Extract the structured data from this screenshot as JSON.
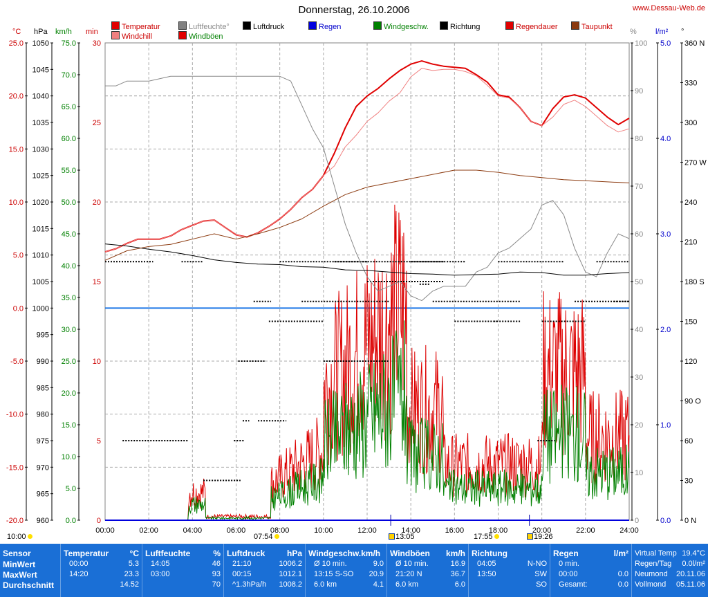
{
  "header": {
    "title": "Donnerstag, 26.10.2006",
    "site": "www.Dessau-Web.de"
  },
  "legend": [
    {
      "label": "Temperatur",
      "color": "#e00000",
      "x": 161,
      "row": 0
    },
    {
      "label": "Windchill",
      "color": "#f08080",
      "x": 161,
      "row": 1
    },
    {
      "label": "Luftfeuchte°",
      "color": "#808080",
      "x": 258,
      "row": 0,
      "text_color": "#888888"
    },
    {
      "label": "Windböen",
      "color": "#e00000",
      "x": 258,
      "row": 1,
      "text_color": "#008000"
    },
    {
      "label": "Luftdruck",
      "color": "#000000",
      "x": 351,
      "row": 0
    },
    {
      "label": "Regen",
      "color": "#0000dd",
      "x": 446,
      "row": 0,
      "text_color": "#0000cc"
    },
    {
      "label": "Windgeschw.",
      "color": "#008000",
      "x": 540,
      "row": 0,
      "text_color": "#008000"
    },
    {
      "label": "Richtung",
      "color": "#000000",
      "x": 636,
      "row": 0
    },
    {
      "label": "Regendauer",
      "color": "#e00000",
      "x": 731,
      "row": 0,
      "text_color": "#cc0000"
    },
    {
      "label": "Taupunkt",
      "color": "#8b3a0f",
      "x": 826,
      "row": 0,
      "text_color": "#cc0000"
    }
  ],
  "units": [
    {
      "label": "°C",
      "x": 18,
      "color": "#cc0000"
    },
    {
      "label": "hPa",
      "x": 49,
      "color": "#000000"
    },
    {
      "label": "km/h",
      "x": 80,
      "color": "#008000"
    },
    {
      "label": "min",
      "x": 124,
      "color": "#cc0000"
    },
    {
      "label": "%",
      "x": 911,
      "color": "#888888"
    },
    {
      "label": "l/m²",
      "x": 948,
      "color": "#0000cc"
    },
    {
      "label": "°",
      "x": 985,
      "color": "#000000"
    }
  ],
  "chart_data": {
    "type": "line",
    "title": "Donnerstag, 26.10.2006",
    "x_ticks": [
      "00:00",
      "02:00",
      "04:00",
      "06:00",
      "08:00",
      "10:00",
      "12:00",
      "14:00",
      "16:00",
      "18:00",
      "20:00",
      "22:00",
      "24:00"
    ],
    "axes": {
      "temp_c": {
        "range": [
          -20,
          25
        ],
        "ticks": [
          "25.0",
          "20.0",
          "15.0",
          "10.0",
          "5.0",
          "0.0",
          "-5.0",
          "-10.0",
          "-15.0",
          "-20.0"
        ],
        "color": "#cc0000"
      },
      "pressure_hpa": {
        "range": [
          960,
          1050
        ],
        "ticks": [
          "1050",
          "1045",
          "1040",
          "1035",
          "1030",
          "1025",
          "1020",
          "1015",
          "1010",
          "1005",
          "1000",
          "995",
          "990",
          "985",
          "980",
          "975",
          "970",
          "965",
          "960"
        ],
        "color": "#000000"
      },
      "wind_kmh": {
        "range": [
          0,
          75
        ],
        "ticks": [
          "75.0",
          "70.0",
          "65.0",
          "60.0",
          "55.0",
          "50.0",
          "45.0",
          "40.0",
          "35.0",
          "30.0",
          "25.0",
          "20.0",
          "15.0",
          "10.0",
          "5.0",
          "0.0"
        ],
        "color": "#008000"
      },
      "min": {
        "range": [
          0,
          30
        ],
        "ticks": [
          "30",
          "25",
          "20",
          "15",
          "10",
          "5",
          "0"
        ],
        "color": "#cc0000"
      },
      "humidity_pct": {
        "range": [
          0,
          100
        ],
        "ticks": [
          "100",
          "90",
          "80",
          "70",
          "60",
          "50",
          "40",
          "30",
          "20",
          "10",
          "0"
        ],
        "color": "#888888"
      },
      "rain_lm2": {
        "range": [
          0,
          5
        ],
        "ticks": [
          "5.0",
          "4.0",
          "3.0",
          "2.0",
          "1.0",
          "0.0"
        ],
        "color": "#0000cc"
      },
      "direction_deg": {
        "range": [
          0,
          360
        ],
        "ticks": [
          "360 N",
          "330",
          "300",
          "270 W",
          "240",
          "210",
          "180 S",
          "150",
          "120",
          "90 O",
          "60",
          "30",
          "0 N"
        ],
        "color": "#000000"
      }
    },
    "series": [
      {
        "name": "Temperatur",
        "axis": "temp_c",
        "color": "#e00000",
        "width": 2,
        "x": [
          0,
          0.5,
          1,
          1.5,
          2,
          2.5,
          3,
          3.5,
          4,
          4.5,
          5,
          5.5,
          6,
          6.5,
          7,
          7.5,
          8,
          8.5,
          9,
          9.5,
          10,
          10.5,
          11,
          11.5,
          12,
          12.5,
          13,
          13.5,
          14,
          14.5,
          15,
          15.5,
          16,
          16.5,
          17,
          17.5,
          18,
          18.5,
          19,
          19.5,
          20,
          20.5,
          21,
          21.5,
          22,
          22.5,
          23,
          23.5,
          24
        ],
        "y": [
          5.3,
          5.6,
          6.1,
          6.5,
          6.5,
          6.5,
          6.8,
          7.4,
          7.8,
          8.2,
          8.3,
          7.6,
          6.9,
          6.7,
          7.1,
          7.7,
          8.4,
          9.3,
          10.4,
          11.2,
          12.5,
          14.6,
          17.0,
          19.0,
          20.0,
          20.7,
          21.6,
          22.4,
          23.0,
          23.3,
          23.0,
          22.8,
          22.7,
          22.6,
          22.0,
          21.3,
          20.1,
          19.9,
          18.9,
          17.6,
          17.2,
          18.8,
          19.9,
          20.1,
          19.8,
          18.9,
          18.0,
          17.3,
          17.9
        ]
      },
      {
        "name": "Windchill",
        "axis": "temp_c",
        "color": "#f08080",
        "width": 1,
        "x": [
          0,
          0.5,
          1,
          1.5,
          2,
          2.5,
          3,
          3.5,
          4,
          4.5,
          5,
          5.5,
          6,
          6.5,
          7,
          7.5,
          8,
          8.5,
          9,
          9.5,
          10,
          10.5,
          11,
          11.5,
          12,
          12.5,
          13,
          13.5,
          14,
          14.5,
          15,
          15.5,
          16,
          16.5,
          17,
          17.5,
          18,
          18.5,
          19,
          19.5,
          20,
          20.5,
          21,
          21.5,
          22,
          22.5,
          23,
          23.5,
          24
        ],
        "y": [
          5.3,
          5.6,
          6.1,
          6.5,
          6.5,
          6.5,
          6.8,
          7.4,
          7.8,
          8.2,
          8.3,
          7.6,
          6.9,
          6.7,
          7.1,
          7.7,
          8.4,
          9.3,
          10.4,
          11.2,
          12.5,
          13.4,
          15.2,
          16.3,
          17.6,
          18.4,
          19.5,
          20.3,
          21.8,
          22.6,
          22.4,
          22.5,
          22.5,
          22.3,
          21.9,
          21.0,
          20.0,
          19.8,
          18.9,
          17.6,
          17.2,
          18.0,
          19.2,
          19.6,
          19.0,
          18.1,
          17.2,
          16.6,
          16.9
        ]
      },
      {
        "name": "Luftfeuchte°",
        "axis": "humidity_pct",
        "color": "#888888",
        "width": 1,
        "x": [
          0,
          0.5,
          1,
          1.5,
          2,
          2.5,
          3,
          3.5,
          4,
          4.5,
          5,
          5.5,
          6,
          6.5,
          7,
          7.5,
          8,
          8.5,
          9,
          9.5,
          10,
          10.5,
          11,
          11.5,
          12,
          12.5,
          13,
          13.5,
          14,
          14.5,
          15,
          15.5,
          16,
          16.5,
          17,
          17.5,
          18,
          18.5,
          19,
          19.5,
          20,
          20.5,
          21,
          21.5,
          22,
          22.5,
          23,
          23.5,
          24
        ],
        "y": [
          91,
          91,
          92,
          92,
          92,
          92.5,
          93,
          93,
          93,
          93,
          93,
          93,
          93,
          93,
          93,
          93,
          93,
          92,
          87,
          82,
          78,
          70,
          62,
          56,
          51,
          48,
          49,
          50,
          47,
          46,
          48,
          49,
          49,
          49,
          52,
          53,
          56,
          57,
          59,
          61,
          66,
          67,
          64,
          57,
          52,
          51,
          56,
          60,
          59
        ]
      },
      {
        "name": "Luftdruck",
        "axis": "pressure_hpa",
        "color": "#000000",
        "width": 1,
        "x": [
          0,
          1,
          2,
          3,
          4,
          5,
          6,
          7,
          8,
          9,
          10,
          11,
          12,
          13,
          14,
          15,
          16,
          17,
          18,
          19,
          20,
          21,
          22,
          23,
          24
        ],
        "y": [
          1012.1,
          1011.7,
          1011.1,
          1010.6,
          1009.9,
          1009.1,
          1008.6,
          1008.3,
          1008.2,
          1007.8,
          1007.7,
          1007.2,
          1007.1,
          1006.8,
          1006.5,
          1006.4,
          1006.2,
          1006.3,
          1006.4,
          1006.8,
          1006.7,
          1006.2,
          1006.2,
          1006.5,
          1006.7
        ]
      },
      {
        "name": "Taupunkt",
        "axis": "temp_c",
        "color": "#8b3a0f",
        "width": 1,
        "x": [
          0,
          1,
          2,
          3,
          4,
          5,
          6,
          7,
          8,
          9,
          10,
          11,
          12,
          13,
          14,
          15,
          16,
          17,
          18,
          19,
          20,
          21,
          22,
          23,
          24
        ],
        "y": [
          4.5,
          5.4,
          5.8,
          6.0,
          6.5,
          7.0,
          6.5,
          7.0,
          7.6,
          8.4,
          9.6,
          10.7,
          11.4,
          11.8,
          12.2,
          12.6,
          13.0,
          13.0,
          12.8,
          12.5,
          12.3,
          12.1,
          12.0,
          11.9,
          11.8
        ]
      },
      {
        "name": "Regen",
        "axis": "rain_lm2",
        "color": "#0000dd",
        "width": 2,
        "x": [
          0,
          24
        ],
        "y": [
          0,
          0
        ]
      }
    ]
  },
  "time_markers": {
    "left": "10:00",
    "sunrise": "07:54",
    "moonrise": "13:05",
    "sunset": "17:55",
    "moonset": "19:26"
  },
  "stats": {
    "sensor": {
      "title": "Sensor",
      "rows": [
        "MinWert",
        "MaxWert",
        "Durchschnitt"
      ]
    },
    "temperatur": {
      "title": "Temperatur",
      "unit": "°C",
      "rows": [
        [
          "00:00",
          "5.3"
        ],
        [
          "14:20",
          "23.3"
        ],
        [
          "",
          "14.52"
        ]
      ]
    },
    "luftfeuchte": {
      "title": "Luftfeuchte",
      "unit": "%",
      "rows": [
        [
          "14:05",
          "46"
        ],
        [
          "03:00",
          "93"
        ],
        [
          "",
          "70"
        ]
      ]
    },
    "luftdruck": {
      "title": "Luftdruck",
      "unit": "hPa",
      "rows": [
        [
          "21:10",
          "1006.2"
        ],
        [
          "00:15",
          "1012.1"
        ],
        [
          "^1.3hPa/h",
          "1008.2"
        ]
      ]
    },
    "windgeschw": {
      "title": "Windgeschw.km/h",
      "unit": "",
      "rows": [
        [
          "Ø 10 min.",
          "9.0"
        ],
        [
          "13:15  S-SO",
          "20.9"
        ],
        [
          "6.0 km",
          "4.1"
        ]
      ]
    },
    "windboeen": {
      "title": "Windböen",
      "unit": "km/h",
      "rows": [
        [
          "Ø 10 min.",
          "16.9"
        ],
        [
          "21:20  N",
          "36.7"
        ],
        [
          "6.0 km",
          "6.0"
        ]
      ]
    },
    "richtung": {
      "title": "Richtung",
      "unit": "",
      "rows": [
        [
          "04:05",
          "N-NO"
        ],
        [
          "13:50",
          "SW"
        ],
        [
          "",
          "SO"
        ]
      ]
    },
    "regen": {
      "title": "Regen",
      "unit": "l/m²",
      "rows": [
        [
          "0 min.",
          ""
        ],
        [
          "00:00",
          "0.0"
        ],
        [
          "Gesamt:",
          "0.0"
        ]
      ]
    },
    "info": {
      "rows": [
        [
          "Virtual Temp",
          "19.4°C"
        ],
        [
          "Regen/Tag",
          "0.0l/m²"
        ],
        [
          "Neumond",
          "20.11.06"
        ],
        [
          "Vollmond",
          "05.11.06"
        ]
      ]
    }
  }
}
